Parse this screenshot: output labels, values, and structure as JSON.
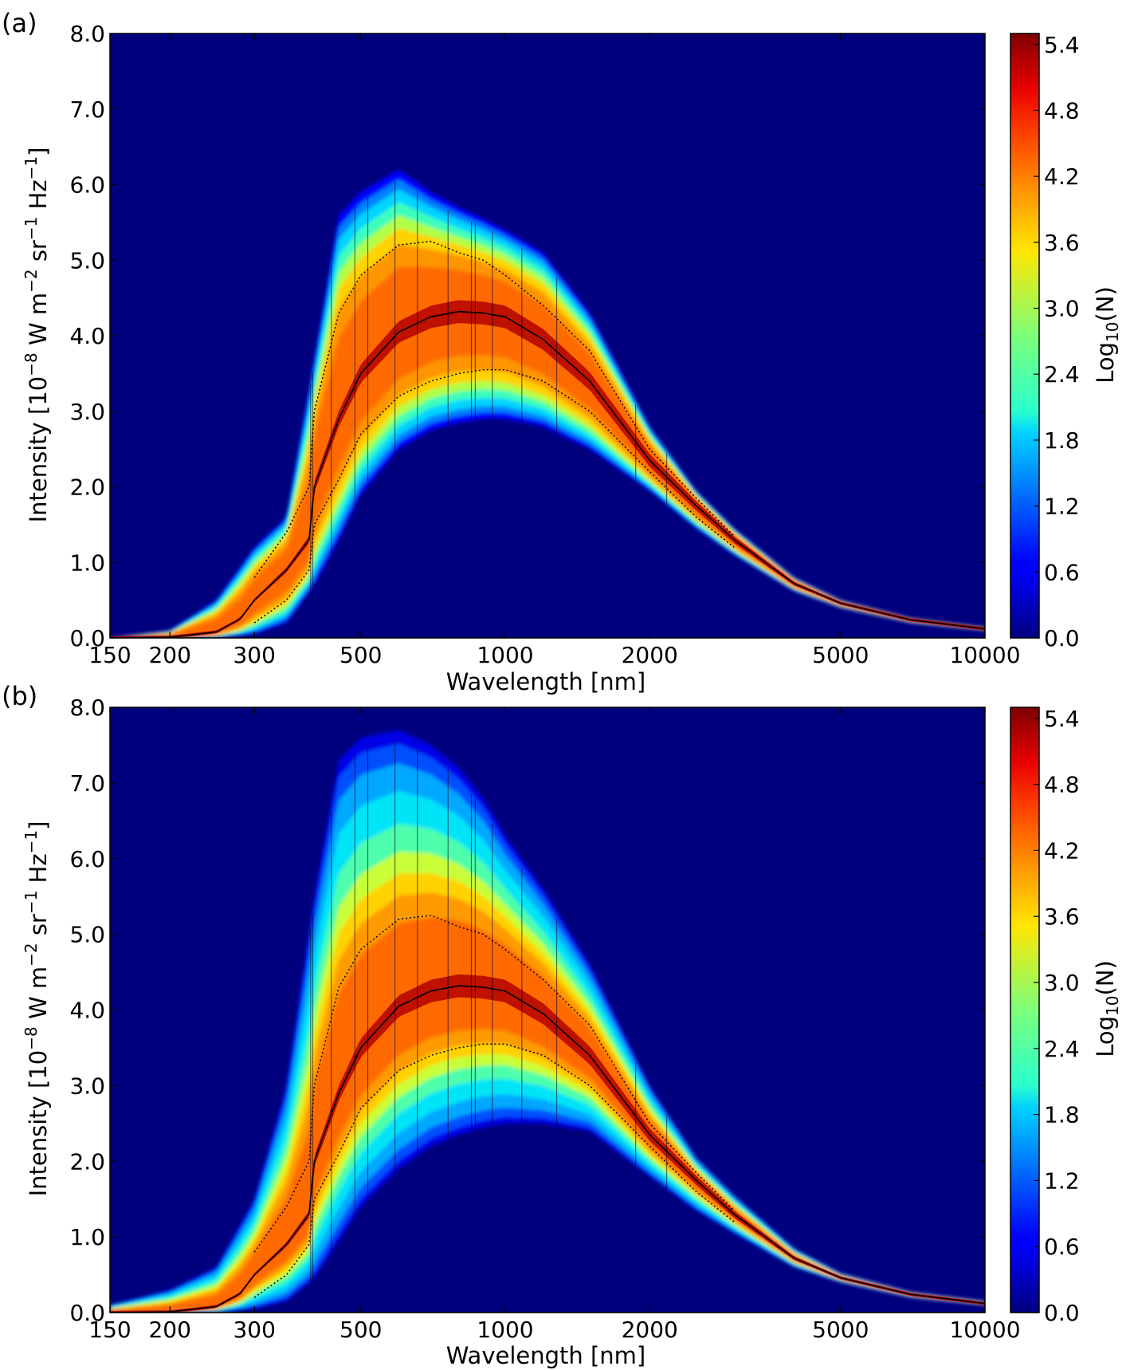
{
  "chart_data": [
    {
      "panel_label": "(a)",
      "type": "heatmap",
      "xlabel": "Wavelength [nm]",
      "ylabel": "Intensity [10^-8 W m^-2 sr^-1 Hz^-1]",
      "x_scale": "log",
      "xlim": [
        150,
        10000
      ],
      "ylim": [
        0.0,
        8.0
      ],
      "x_ticks": [
        150,
        200,
        300,
        500,
        1000,
        2000,
        5000,
        10000
      ],
      "x_tick_labels": [
        "150",
        "200",
        "300",
        "500",
        "1000",
        "2000",
        "5000",
        "10000"
      ],
      "y_ticks": [
        0.0,
        1.0,
        2.0,
        3.0,
        4.0,
        5.0,
        6.0,
        7.0,
        8.0
      ],
      "y_tick_labels": [
        "0.0",
        "1.0",
        "2.0",
        "3.0",
        "4.0",
        "5.0",
        "6.0",
        "7.0",
        "8.0"
      ],
      "colorbar": {
        "label": "Log10(N)",
        "range": [
          0.0,
          5.5
        ],
        "ticks": [
          0.0,
          0.6,
          1.2,
          1.8,
          2.4,
          3.0,
          3.6,
          4.2,
          4.8,
          5.4
        ],
        "tick_labels": [
          "0.0",
          "0.6",
          "1.2",
          "1.8",
          "2.4",
          "3.0",
          "3.6",
          "4.2",
          "4.8",
          "5.4"
        ],
        "colormap": "jet"
      },
      "background_color": "#00007f",
      "median_curve": {
        "x": [
          150,
          200,
          250,
          280,
          300,
          350,
          390,
          400,
          450,
          500,
          600,
          700,
          800,
          900,
          1000,
          1200,
          1500,
          2000,
          2500,
          3000,
          4000,
          5000,
          7000,
          10000
        ],
        "y": [
          0.0,
          0.01,
          0.08,
          0.25,
          0.5,
          0.9,
          1.3,
          2.0,
          2.9,
          3.5,
          4.05,
          4.25,
          4.32,
          4.3,
          4.25,
          3.95,
          3.4,
          2.35,
          1.75,
          1.3,
          0.72,
          0.46,
          0.24,
          0.12
        ]
      },
      "band_upper_dotted": {
        "x": [
          300,
          350,
          390,
          400,
          450,
          500,
          600,
          700,
          800,
          900,
          1000,
          1200,
          1500,
          2000,
          2500,
          3000
        ],
        "y": [
          0.8,
          1.4,
          2.0,
          3.0,
          4.3,
          4.8,
          5.2,
          5.25,
          5.1,
          5.0,
          4.8,
          4.4,
          3.8,
          2.5,
          1.85,
          1.35
        ]
      },
      "band_lower_dotted": {
        "x": [
          300,
          350,
          390,
          400,
          450,
          500,
          600,
          700,
          800,
          900,
          1000,
          1200,
          1500,
          2000,
          2500,
          3000
        ],
        "y": [
          0.2,
          0.5,
          0.9,
          1.5,
          2.1,
          2.7,
          3.2,
          3.4,
          3.5,
          3.55,
          3.55,
          3.4,
          3.0,
          2.2,
          1.6,
          1.2
        ]
      },
      "envelope_upper": {
        "x": [
          150,
          200,
          250,
          300,
          350,
          400,
          450,
          500,
          600,
          700,
          800,
          900,
          1000,
          1200,
          1500,
          2000,
          2500,
          3000,
          4000,
          5000,
          7000,
          10000
        ],
        "y": [
          0.0,
          0.1,
          0.5,
          1.2,
          1.6,
          3.7,
          5.6,
          5.9,
          6.2,
          5.9,
          5.7,
          5.55,
          5.4,
          5.1,
          4.3,
          2.8,
          1.95,
          1.45,
          0.8,
          0.5,
          0.26,
          0.14
        ]
      },
      "envelope_lower": {
        "x": [
          150,
          250,
          300,
          350,
          400,
          450,
          500,
          600,
          700,
          800,
          900,
          1000,
          1200,
          1500,
          2000,
          2500,
          3000,
          4000,
          5000,
          7000,
          10000
        ],
        "y": [
          0.0,
          0.0,
          0.05,
          0.2,
          0.7,
          1.3,
          1.9,
          2.5,
          2.75,
          2.85,
          2.9,
          2.9,
          2.8,
          2.5,
          1.95,
          1.45,
          1.1,
          0.62,
          0.4,
          0.2,
          0.1
        ]
      }
    },
    {
      "panel_label": "(b)",
      "type": "heatmap",
      "xlabel": "Wavelength [nm]",
      "ylabel": "Intensity [10^-8 W m^-2 sr^-1 Hz^-1]",
      "x_scale": "log",
      "xlim": [
        150,
        10000
      ],
      "ylim": [
        0.0,
        8.0
      ],
      "x_ticks": [
        150,
        200,
        300,
        500,
        1000,
        2000,
        5000,
        10000
      ],
      "x_tick_labels": [
        "150",
        "200",
        "300",
        "500",
        "1000",
        "2000",
        "5000",
        "10000"
      ],
      "y_ticks": [
        0.0,
        1.0,
        2.0,
        3.0,
        4.0,
        5.0,
        6.0,
        7.0,
        8.0
      ],
      "y_tick_labels": [
        "0.0",
        "1.0",
        "2.0",
        "3.0",
        "4.0",
        "5.0",
        "6.0",
        "7.0",
        "8.0"
      ],
      "colorbar": {
        "label": "Log10(N)",
        "range": [
          0.0,
          5.5
        ],
        "ticks": [
          0.0,
          0.6,
          1.2,
          1.8,
          2.4,
          3.0,
          3.6,
          4.2,
          4.8,
          5.4
        ],
        "tick_labels": [
          "0.0",
          "0.6",
          "1.2",
          "1.8",
          "2.4",
          "3.0",
          "3.6",
          "4.2",
          "4.8",
          "5.4"
        ],
        "colormap": "jet"
      },
      "background_color": "#00007f",
      "median_curve": {
        "x": [
          150,
          200,
          250,
          280,
          300,
          350,
          390,
          400,
          450,
          500,
          600,
          700,
          800,
          900,
          1000,
          1200,
          1500,
          2000,
          2500,
          3000,
          4000,
          5000,
          7000,
          10000
        ],
        "y": [
          0.0,
          0.01,
          0.08,
          0.25,
          0.5,
          0.9,
          1.3,
          2.0,
          2.9,
          3.5,
          4.05,
          4.25,
          4.32,
          4.3,
          4.25,
          3.95,
          3.4,
          2.35,
          1.75,
          1.3,
          0.72,
          0.46,
          0.24,
          0.12
        ]
      },
      "band_upper_dotted": {
        "x": [
          300,
          350,
          390,
          400,
          450,
          500,
          600,
          700,
          800,
          900,
          1000,
          1200,
          1500,
          2000,
          2500,
          3000
        ],
        "y": [
          0.8,
          1.4,
          2.0,
          3.0,
          4.3,
          4.8,
          5.2,
          5.25,
          5.1,
          5.0,
          4.8,
          4.4,
          3.8,
          2.5,
          1.85,
          1.35
        ]
      },
      "band_lower_dotted": {
        "x": [
          300,
          350,
          390,
          400,
          450,
          500,
          600,
          700,
          800,
          900,
          1000,
          1200,
          1500,
          2000,
          2500,
          3000
        ],
        "y": [
          0.2,
          0.5,
          0.9,
          1.5,
          2.1,
          2.7,
          3.2,
          3.4,
          3.5,
          3.55,
          3.55,
          3.4,
          3.0,
          2.2,
          1.6,
          1.2
        ]
      },
      "envelope_upper": {
        "x": [
          150,
          200,
          250,
          300,
          350,
          400,
          450,
          500,
          600,
          700,
          800,
          900,
          1000,
          1200,
          1500,
          2000,
          2500,
          3000,
          4000,
          5000,
          7000,
          10000
        ],
        "y": [
          0.1,
          0.3,
          0.6,
          1.5,
          3.0,
          5.5,
          7.3,
          7.6,
          7.7,
          7.5,
          7.2,
          6.8,
          6.3,
          5.6,
          4.6,
          3.0,
          2.05,
          1.55,
          0.85,
          0.52,
          0.27,
          0.15
        ]
      },
      "envelope_lower": {
        "x": [
          150,
          250,
          300,
          350,
          400,
          450,
          500,
          600,
          700,
          800,
          900,
          1000,
          1200,
          1500,
          2000,
          2500,
          3000,
          4000,
          5000,
          7000,
          10000
        ],
        "y": [
          0.0,
          0.0,
          0.05,
          0.15,
          0.45,
          0.95,
          1.4,
          1.9,
          2.2,
          2.35,
          2.45,
          2.5,
          2.5,
          2.4,
          1.8,
          1.35,
          1.05,
          0.6,
          0.4,
          0.2,
          0.1
        ]
      }
    }
  ]
}
